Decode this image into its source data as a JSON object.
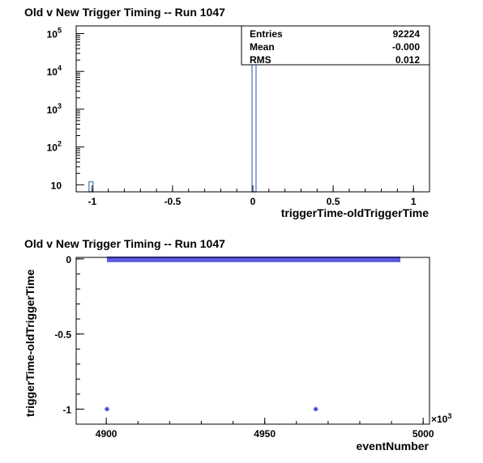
{
  "chart_data": [
    {
      "type": "histogram",
      "title": "Old v New Trigger Timing -- Run 1047",
      "xlabel": "triggerTime-oldTriggerTime",
      "ylabel": "",
      "xlim": [
        -1.1,
        1.1
      ],
      "ylim": [
        6.5,
        160000
      ],
      "yscale": "log",
      "xticks": [
        -1,
        -0.5,
        0,
        0.5,
        1
      ],
      "xtick_labels": [
        "-1",
        "-0.5",
        "0",
        "0.5",
        "1"
      ],
      "yticks": [
        10,
        100,
        1000,
        10000,
        100000
      ],
      "ytick_labels": [
        {
          "base": "10",
          "exp": ""
        },
        {
          "base": "10",
          "exp": "2"
        },
        {
          "base": "10",
          "exp": "3"
        },
        {
          "base": "10",
          "exp": "4"
        },
        {
          "base": "10",
          "exp": "5"
        }
      ],
      "bins": [
        {
          "x0": -1.02,
          "x1": -0.995,
          "count": 12
        },
        {
          "x0": -0.005,
          "x1": 0.02,
          "count": 92210
        }
      ],
      "color": "#6b8fc9",
      "stats": {
        "rows": [
          {
            "label": "Entries",
            "value": "92224"
          },
          {
            "label": "Mean",
            "value": "-0.000"
          },
          {
            "label": "RMS",
            "value": "0.012"
          }
        ]
      }
    },
    {
      "type": "scatter",
      "title": "Old v New Trigger Timing -- Run 1047",
      "xlabel": "eventNumber",
      "ylabel": "triggerTime-oldTriggerTime",
      "x_multiplier": "×10",
      "x_multiplier_exp": "3",
      "xlim": [
        4890.5,
        5002
      ],
      "ylim": [
        -1.1,
        0.01
      ],
      "xticks": [
        4900,
        4950,
        5000
      ],
      "xtick_labels": [
        "4900",
        "4950",
        "5000"
      ],
      "yticks": [
        0,
        -0.5,
        -1
      ],
      "ytick_labels": [
        "0",
        "-0.5",
        "-1"
      ],
      "band": {
        "x_start": 4900.2,
        "x_end": 4992.8,
        "y": 0
      },
      "points": [
        {
          "x": 4900.2,
          "y": -1
        },
        {
          "x": 4966.1,
          "y": -1
        }
      ],
      "color": "#3b3bdd"
    }
  ]
}
